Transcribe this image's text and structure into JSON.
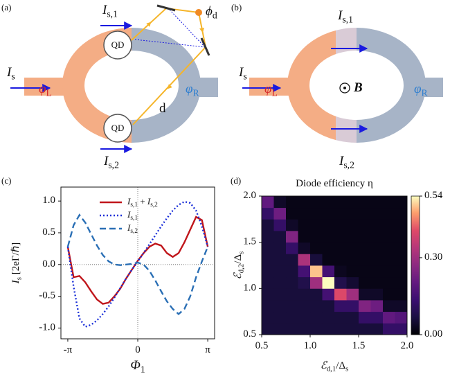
{
  "diagram_a": {
    "label": "(a)",
    "current_top": "Is,1",
    "phase_dot": "ϕd",
    "current": "Is",
    "phase_left": "φL",
    "phase_right": "φR",
    "dot_top": "QD",
    "dot_bottom": "QD",
    "distance": "d",
    "current_bottom": "Is,2"
  },
  "diagram_b": {
    "label": "(b)",
    "current_top": "Is,1",
    "current": "Is",
    "phase_left": "φL",
    "phase_right": "φR",
    "field": "B",
    "current_bottom": "Is,2"
  },
  "chart_data": [
    {
      "type": "line",
      "panel_label": "(c)",
      "xlabel": "Φ1",
      "ylabel": "Is [2eΓ/ℏ]",
      "x": [
        -3.1416,
        -2.8798,
        -2.618,
        -2.3562,
        -2.0944,
        -1.8326,
        -1.5708,
        -1.309,
        -1.0472,
        -0.7854,
        -0.5236,
        -0.2618,
        0,
        0.2618,
        0.5236,
        0.7854,
        1.0472,
        1.309,
        1.5708,
        1.8326,
        2.0944,
        2.3562,
        2.618,
        2.8798,
        3.1416
      ],
      "series": [
        {
          "name": "Is,1 + Is,2",
          "color": "#c0161b",
          "style": "solid",
          "values": [
            0.28,
            -0.2,
            -0.18,
            -0.28,
            -0.42,
            -0.55,
            -0.62,
            -0.6,
            -0.5,
            -0.38,
            -0.22,
            -0.08,
            0.06,
            0.18,
            0.28,
            0.33,
            0.3,
            0.18,
            0.12,
            0.18,
            0.35,
            0.55,
            0.75,
            0.7,
            0.28
          ]
        },
        {
          "name": "Is,1",
          "color": "#1a2fd8",
          "style": "dotted",
          "values": [
            0.28,
            -0.35,
            -0.85,
            -0.98,
            -0.95,
            -0.88,
            -0.78,
            -0.66,
            -0.52,
            -0.37,
            -0.22,
            -0.08,
            0.05,
            0.18,
            0.32,
            0.46,
            0.6,
            0.73,
            0.85,
            0.94,
            0.99,
            0.97,
            0.85,
            0.6,
            0.28
          ]
        },
        {
          "name": "Is,2",
          "color": "#2a6fb5",
          "style": "dashed",
          "values": [
            0.28,
            0.62,
            0.78,
            0.66,
            0.48,
            0.3,
            0.15,
            0.05,
            0,
            -0.01,
            0,
            0.01,
            0.03,
            0,
            -0.1,
            -0.25,
            -0.42,
            -0.58,
            -0.7,
            -0.78,
            -0.7,
            -0.5,
            -0.2,
            0.05,
            0.28
          ]
        }
      ],
      "xlim": [
        -3.45,
        3.45
      ],
      "ylim": [
        -1.17,
        1.22
      ],
      "xticks": [
        {
          "value": -3.1416,
          "label": "-π"
        },
        0,
        {
          "value": 3.1416,
          "label": "π"
        }
      ],
      "yticks": [
        {
          "value": -1,
          "label": "-1.0"
        },
        -0.5,
        {
          "value": 0,
          "label": "0.0"
        },
        0.5,
        {
          "value": 1,
          "label": "1.0"
        }
      ],
      "legend": "upper center",
      "zero_lines": true
    },
    {
      "type": "heatmap",
      "panel_label": "(d)",
      "title": "Diode efficiency η",
      "xlabel": "ℰd,1/Δs",
      "ylabel": "ℰd,2/Δs",
      "x": [
        0.5625,
        0.6875,
        0.8125,
        0.9375,
        1.0625,
        1.1875,
        1.3125,
        1.4375,
        1.5625,
        1.6875,
        1.8125,
        1.9375
      ],
      "y": [
        0.5625,
        0.6875,
        0.8125,
        0.9375,
        1.0625,
        1.1875,
        1.3125,
        1.4375,
        1.5625,
        1.6875,
        1.8125,
        1.9375
      ],
      "z": [
        [
          0.06,
          0.06,
          0.06,
          0.06,
          0.06,
          0.06,
          0.06,
          0.06,
          0.06,
          0.06,
          0.12,
          0.12
        ],
        [
          0.06,
          0.06,
          0.06,
          0.06,
          0.06,
          0.06,
          0.06,
          0.06,
          0.12,
          0.12,
          0.2,
          0.18
        ],
        [
          0.06,
          0.06,
          0.06,
          0.06,
          0.06,
          0.06,
          0.12,
          0.12,
          0.25,
          0.22,
          0.04,
          0.04
        ],
        [
          0.06,
          0.06,
          0.06,
          0.06,
          0.06,
          0.15,
          0.4,
          0.3,
          0.04,
          0.04,
          0.02,
          0.02
        ],
        [
          0.06,
          0.06,
          0.06,
          0.08,
          0.3,
          0.54,
          0.08,
          0.05,
          0.02,
          0.02,
          0.02,
          0.02
        ],
        [
          0.06,
          0.06,
          0.06,
          0.15,
          0.5,
          0.15,
          0.03,
          0.02,
          0.02,
          0.02,
          0.02,
          0.02
        ],
        [
          0.06,
          0.06,
          0.06,
          0.32,
          0.06,
          0.02,
          0.02,
          0.02,
          0.02,
          0.02,
          0.02,
          0.02
        ],
        [
          0.06,
          0.06,
          0.12,
          0.04,
          0.02,
          0.02,
          0.02,
          0.02,
          0.02,
          0.02,
          0.02,
          0.02
        ],
        [
          0.06,
          0.06,
          0.25,
          0.02,
          0.02,
          0.02,
          0.02,
          0.02,
          0.02,
          0.02,
          0.02,
          0.02
        ],
        [
          0.06,
          0.12,
          0.04,
          0.02,
          0.02,
          0.02,
          0.02,
          0.02,
          0.02,
          0.02,
          0.02,
          0.02
        ],
        [
          0.12,
          0.22,
          0.02,
          0.02,
          0.02,
          0.02,
          0.02,
          0.02,
          0.02,
          0.02,
          0.02,
          0.02
        ],
        [
          0.2,
          0.04,
          0.02,
          0.02,
          0.02,
          0.02,
          0.02,
          0.02,
          0.02,
          0.02,
          0.02,
          0.02
        ]
      ],
      "xlim": [
        0.5,
        2
      ],
      "ylim": [
        0.5,
        2
      ],
      "xticks": [
        0.5,
        {
          "value": 1,
          "label": "1.0"
        },
        1.5,
        {
          "value": 2,
          "label": "2.0"
        }
      ],
      "yticks": [
        0.5,
        {
          "value": 1,
          "label": "1.0"
        },
        1.5,
        {
          "value": 2,
          "label": "2.0"
        }
      ],
      "colormap": "magma",
      "zlim": [
        0,
        0.54
      ],
      "colorbar_ticks": [
        {
          "value": 0,
          "label": "0.00"
        },
        {
          "value": 0.3,
          "label": "0.30"
        },
        0.54
      ]
    }
  ]
}
